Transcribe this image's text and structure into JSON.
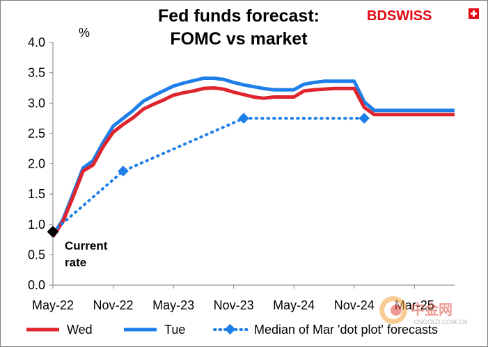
{
  "header": {
    "title_line1": "Fed funds forecast:",
    "title_line2": "FOMC vs market",
    "brand": "BDSWISS",
    "brand_color": "#e30613",
    "brand_icon": "swiss-cross-icon"
  },
  "watermark": {
    "logo_icon": "cngold-coin-icon",
    "text": "中金网",
    "url": "CNGOLD.COM.CN"
  },
  "chart_data": {
    "type": "line",
    "title": "Fed funds forecast: FOMC vs market",
    "ylabel": "%",
    "ylim": [
      0,
      4
    ],
    "yticks": [
      "0.0",
      "0.5",
      "1.0",
      "1.5",
      "2.0",
      "2.5",
      "3.0",
      "3.5",
      "4.0"
    ],
    "xlim": [
      0,
      40
    ],
    "xticks": [
      {
        "x": 0,
        "label": "May-22"
      },
      {
        "x": 6,
        "label": "Nov-22"
      },
      {
        "x": 12,
        "label": "May-23"
      },
      {
        "x": 18,
        "label": "Nov-23"
      },
      {
        "x": 24,
        "label": "May-24"
      },
      {
        "x": 30,
        "label": "Nov-24"
      },
      {
        "x": 36,
        "label": "Mar-25"
      }
    ],
    "grid": false,
    "legend_position": "bottom",
    "series": [
      {
        "name": "Wed",
        "color": "#e0242e",
        "style": "solid",
        "points": [
          [
            0,
            0.8
          ],
          [
            1,
            1.05
          ],
          [
            2,
            1.45
          ],
          [
            3,
            1.88
          ],
          [
            4,
            1.98
          ],
          [
            5,
            2.28
          ],
          [
            6,
            2.52
          ],
          [
            7,
            2.65
          ],
          [
            8,
            2.76
          ],
          [
            9,
            2.9
          ],
          [
            10,
            2.98
          ],
          [
            11,
            3.05
          ],
          [
            12,
            3.13
          ],
          [
            13,
            3.17
          ],
          [
            14,
            3.2
          ],
          [
            15,
            3.24
          ],
          [
            16,
            3.25
          ],
          [
            17,
            3.23
          ],
          [
            18,
            3.18
          ],
          [
            19,
            3.14
          ],
          [
            20,
            3.1
          ],
          [
            21,
            3.08
          ],
          [
            22,
            3.1
          ],
          [
            23,
            3.1
          ],
          [
            24,
            3.1
          ],
          [
            25,
            3.2
          ],
          [
            26,
            3.22
          ],
          [
            27,
            3.23
          ],
          [
            28,
            3.24
          ],
          [
            29,
            3.24
          ],
          [
            30,
            3.24
          ],
          [
            31,
            2.93
          ],
          [
            32,
            2.81
          ],
          [
            33,
            2.81
          ],
          [
            34,
            2.81
          ],
          [
            35,
            2.81
          ],
          [
            36,
            2.81
          ],
          [
            37,
            2.81
          ],
          [
            38,
            2.81
          ],
          [
            39,
            2.81
          ],
          [
            40,
            2.81
          ]
        ]
      },
      {
        "name": "Tue",
        "color": "#1f7fe8",
        "style": "solid",
        "points": [
          [
            0,
            0.82
          ],
          [
            1,
            1.08
          ],
          [
            2,
            1.5
          ],
          [
            3,
            1.93
          ],
          [
            4,
            2.05
          ],
          [
            5,
            2.35
          ],
          [
            6,
            2.62
          ],
          [
            7,
            2.75
          ],
          [
            8,
            2.88
          ],
          [
            9,
            3.03
          ],
          [
            10,
            3.12
          ],
          [
            11,
            3.2
          ],
          [
            12,
            3.28
          ],
          [
            13,
            3.33
          ],
          [
            14,
            3.37
          ],
          [
            15,
            3.41
          ],
          [
            16,
            3.41
          ],
          [
            17,
            3.39
          ],
          [
            18,
            3.34
          ],
          [
            19,
            3.3
          ],
          [
            20,
            3.27
          ],
          [
            21,
            3.24
          ],
          [
            22,
            3.22
          ],
          [
            23,
            3.22
          ],
          [
            24,
            3.22
          ],
          [
            25,
            3.31
          ],
          [
            26,
            3.34
          ],
          [
            27,
            3.36
          ],
          [
            28,
            3.36
          ],
          [
            29,
            3.36
          ],
          [
            30,
            3.36
          ],
          [
            31,
            3.02
          ],
          [
            32,
            2.88
          ],
          [
            33,
            2.88
          ],
          [
            34,
            2.88
          ],
          [
            35,
            2.88
          ],
          [
            36,
            2.88
          ],
          [
            37,
            2.88
          ],
          [
            38,
            2.88
          ],
          [
            39,
            2.88
          ],
          [
            40,
            2.88
          ]
        ]
      },
      {
        "name": "Median of Mar 'dot plot' forecasts",
        "color": "#1f7fe8",
        "style": "dotted",
        "marker": "diamond",
        "points": [
          [
            0,
            0.88
          ],
          [
            7,
            1.88
          ],
          [
            19,
            2.75
          ],
          [
            31,
            2.75
          ]
        ]
      }
    ],
    "annotations": [
      {
        "text_line1": "Current",
        "text_line2": "rate",
        "x": 0,
        "y": 0.88,
        "marker": "diamond",
        "color": "#000000"
      }
    ]
  }
}
